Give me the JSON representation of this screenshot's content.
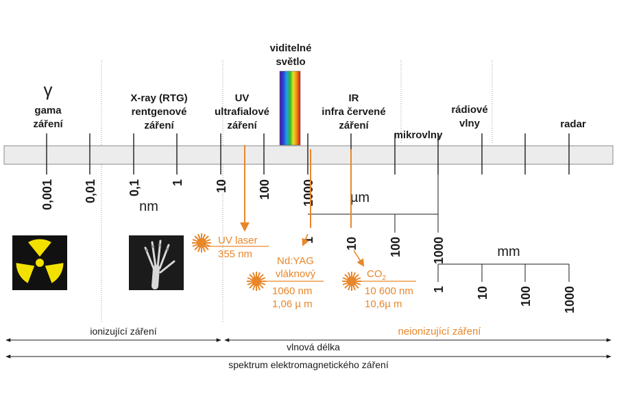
{
  "colors": {
    "orange": "#e8862a",
    "band_fill": "#ececec",
    "band_stroke": "#8a8a8a",
    "dark": "#1a1a1a",
    "radiation_yellow": "#f2e100"
  },
  "regions": {
    "gamma_symbol": "γ",
    "gamma_line1": "gama",
    "gamma_line2": "záření",
    "xray_line1": "X-ray (RTG)",
    "xray_line2": "rentgenové",
    "xray_line3": "záření",
    "uv_line1": "UV",
    "uv_line2": "ultrafialové",
    "uv_line3": "záření",
    "visible_line1": "viditelné",
    "visible_line2": "světlo",
    "ir_line1": "IR",
    "ir_line2": "infra červené",
    "ir_line3": "záření",
    "microwave": "mikrovlny",
    "radio_line1": "rádiové",
    "radio_line2": "vlny",
    "radar": "radar"
  },
  "scale_nm": {
    "unit": "nm",
    "ticks": [
      "0,001",
      "0,01",
      "0,1",
      "1",
      "10",
      "100",
      "1000"
    ]
  },
  "scale_um": {
    "unit": "µm",
    "ticks": [
      "1",
      "10",
      "100",
      "1000"
    ]
  },
  "scale_mm": {
    "unit": "mm",
    "ticks": [
      "1",
      "10",
      "100",
      "1000"
    ]
  },
  "lasers": {
    "uv_line1": "UV laser",
    "uv_line2": "355 nm",
    "ndyag_line1": "Nd:YAG",
    "ndyag_line2": "vláknový",
    "ndyag_line3": "1060 nm",
    "ndyag_line4": "1,06 µ m",
    "co2_name": "CO",
    "co2_sub": "2",
    "co2_line2": "10 600 nm",
    "co2_line3": "10,6µ m"
  },
  "ranges": {
    "ionizing": "ionizující záření",
    "nonionizing": "neionizující záření",
    "wavelength": "vlnová délka",
    "spectrum": "spektrum elektromagnetického záření"
  }
}
